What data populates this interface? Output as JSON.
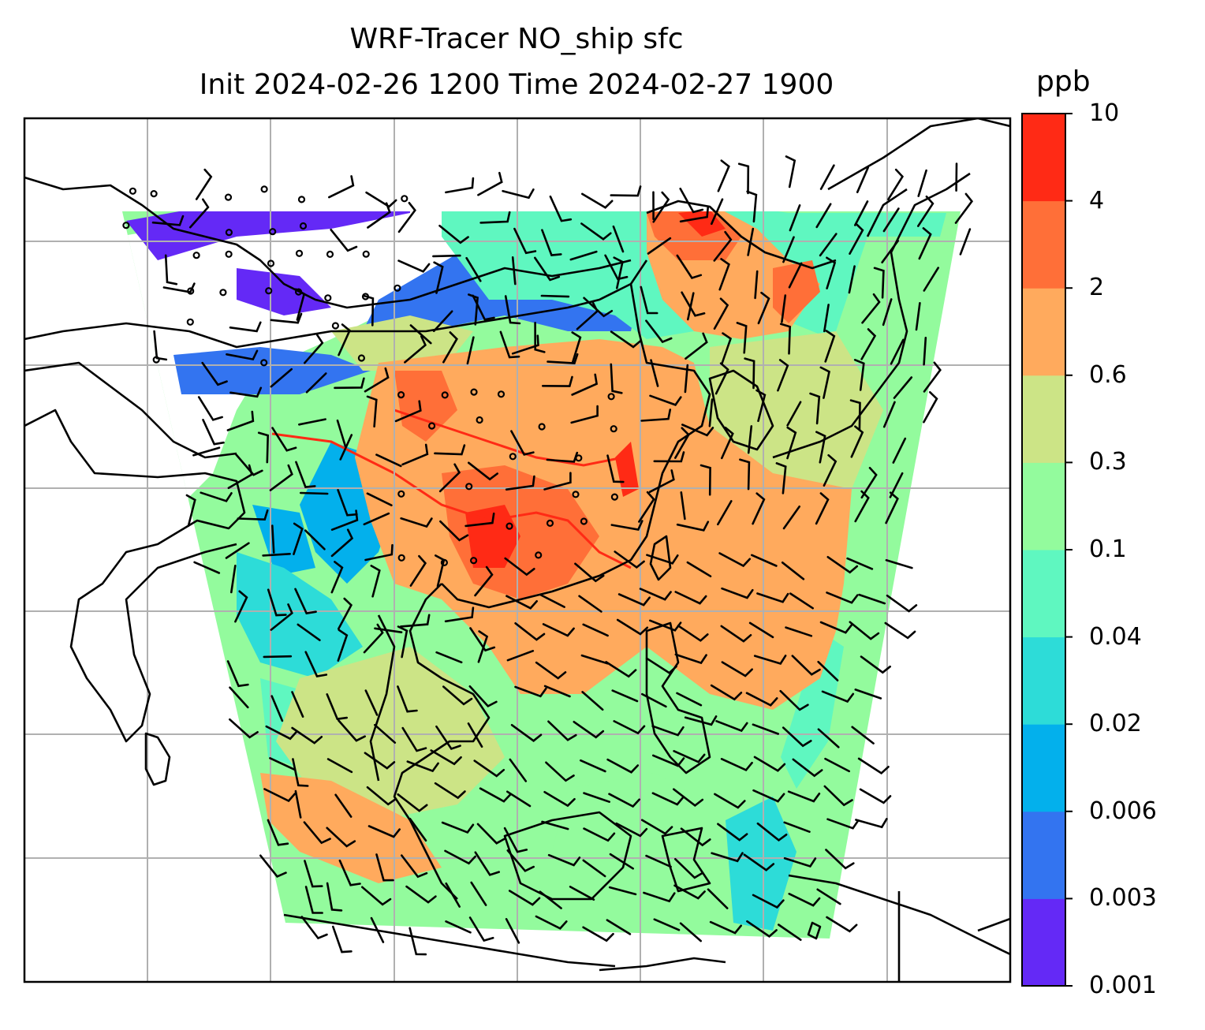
{
  "title": {
    "line1": "WRF-Tracer NO_ship sfc",
    "line2": "Init 2024-02-26 1200 Time 2024-02-27 1900"
  },
  "colorbar": {
    "unit": "ppb",
    "levels": [
      "0.001",
      "0.003",
      "0.006",
      "0.02",
      "0.04",
      "0.1",
      "0.3",
      "0.6",
      "2",
      "4",
      "10"
    ],
    "colors": [
      "#6429f6",
      "#3374f0",
      "#03b0ec",
      "#2ddcd8",
      "#5ff7c0",
      "#93fb9d",
      "#cce486",
      "#ffaa5d",
      "#ff6f38",
      "#ff2a15"
    ]
  },
  "map": {
    "frame_color": "#000000",
    "gridline_color": "#b0b0b0",
    "coastline_color": "#000000",
    "wind_barb_color": "#000000"
  }
}
